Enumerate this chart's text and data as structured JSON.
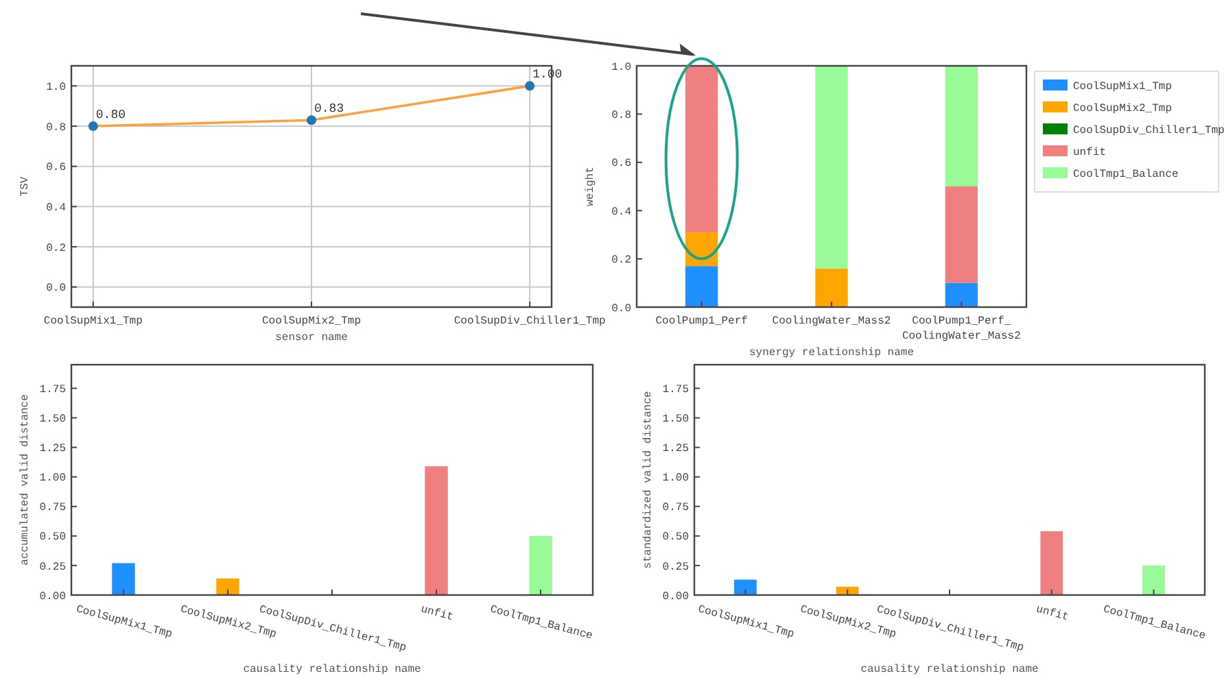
{
  "chart_data": [
    {
      "type": "line",
      "xlabel": "sensor name",
      "ylabel": "TSV",
      "categories": [
        "CoolSupMix1_Tmp",
        "CoolSupMix2_Tmp",
        "CoolSupDiv_Chiller1_Tmp"
      ],
      "values": [
        0.8,
        0.83,
        1.0
      ],
      "color": "#ffa040",
      "colors": [
        "#1f77b4",
        "#1f77b4",
        "#1f77b4"
      ],
      "marker": "circle",
      "value_labels": [
        "0.80",
        "0.83",
        "1.00"
      ],
      "grid": true,
      "ylim": [
        -0.1,
        1.1
      ],
      "yticks": [
        {
          "value": 0,
          "label": "0.0"
        },
        {
          "value": 0.2,
          "label": "0.2"
        },
        {
          "value": 0.4,
          "label": "0.4"
        },
        {
          "value": 0.6,
          "label": "0.6"
        },
        {
          "value": 0.8,
          "label": "0.8"
        },
        {
          "value": 1,
          "label": "1.0"
        }
      ]
    },
    {
      "type": "bar",
      "stacked": true,
      "xlabel": "synergy relationship name",
      "ylabel": "weight",
      "categories": [
        "CoolPump1_Perf",
        "CoolingWater_Mass2",
        "CoolPump1_Perf_\nCoolingWater_Mass2"
      ],
      "legend": "right",
      "ylim": [
        0,
        1
      ],
      "yticks": [
        {
          "value": 0,
          "label": "0.0"
        },
        {
          "value": 0.2,
          "label": "0.2"
        },
        {
          "value": 0.4,
          "label": "0.4"
        },
        {
          "value": 0.6,
          "label": "0.6"
        },
        {
          "value": 0.8,
          "label": "0.8"
        },
        {
          "value": 1,
          "label": "1.0"
        }
      ],
      "series": [
        {
          "name": "CoolSupMix1_Tmp",
          "color": "#1e90ff",
          "values": [
            0.17,
            0,
            0.1
          ]
        },
        {
          "name": "CoolSupMix2_Tmp",
          "color": "#ffa500",
          "values": [
            0.14,
            0.16,
            0
          ]
        },
        {
          "name": "CoolSupDiv_Chiller1_Tmp",
          "color": "#008000",
          "values": [
            0,
            0,
            0
          ]
        },
        {
          "name": "unfit",
          "color": "#f08080",
          "values": [
            0.69,
            0,
            0.4
          ]
        },
        {
          "name": "CoolTmp1_Balance",
          "color": "#98fb98",
          "values": [
            0,
            0.84,
            0.5
          ]
        }
      ]
    },
    {
      "type": "bar",
      "xlabel": "causality relationship name",
      "ylabel": "accumulated valid distance",
      "categories": [
        "CoolSupMix1_Tmp",
        "CoolSupMix2_Tmp",
        "CoolSupDiv_Chiller1_Tmp",
        "unfit",
        "CoolTmp1_Balance"
      ],
      "values": [
        0.27,
        0.14,
        0,
        1.09,
        0.5
      ],
      "colors": [
        "#1e90ff",
        "#ffa500",
        "#008000",
        "#f08080",
        "#98fb98"
      ],
      "ylim": [
        0,
        1.95
      ],
      "yticks": [
        {
          "value": 0,
          "label": "0.00"
        },
        {
          "value": 0.25,
          "label": "0.25"
        },
        {
          "value": 0.5,
          "label": "0.50"
        },
        {
          "value": 0.75,
          "label": "0.75"
        },
        {
          "value": 1,
          "label": "1.00"
        },
        {
          "value": 1.25,
          "label": "1.25"
        },
        {
          "value": 1.5,
          "label": "1.50"
        },
        {
          "value": 1.75,
          "label": "1.75"
        }
      ]
    },
    {
      "type": "bar",
      "xlabel": "causality relationship name",
      "ylabel": "standardized valid distance",
      "categories": [
        "CoolSupMix1_Tmp",
        "CoolSupMix2_Tmp",
        "CoolSupDiv_Chiller1_Tmp",
        "unfit",
        "CoolTmp1_Balance"
      ],
      "values": [
        0.13,
        0.07,
        0,
        0.54,
        0.25
      ],
      "colors": [
        "#1e90ff",
        "#ffa500",
        "#008000",
        "#f08080",
        "#98fb98"
      ],
      "ylim": [
        0,
        1.95
      ],
      "yticks": [
        {
          "value": 0,
          "label": "0.00"
        },
        {
          "value": 0.25,
          "label": "0.25"
        },
        {
          "value": 0.5,
          "label": "0.50"
        },
        {
          "value": 0.75,
          "label": "0.75"
        },
        {
          "value": 1,
          "label": "1.00"
        },
        {
          "value": 1.25,
          "label": "1.25"
        },
        {
          "value": 1.5,
          "label": "1.50"
        },
        {
          "value": 1.75,
          "label": "1.75"
        }
      ]
    }
  ]
}
